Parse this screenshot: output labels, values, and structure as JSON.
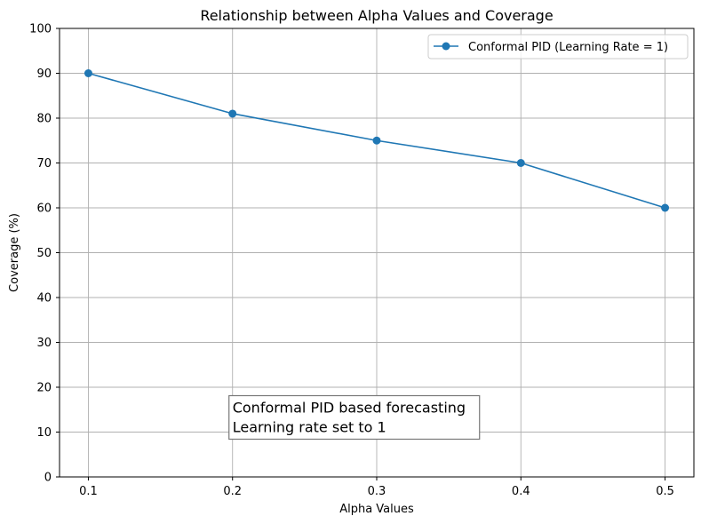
{
  "chart_data": {
    "type": "line",
    "title": "Relationship between Alpha Values and Coverage",
    "xlabel": "Alpha Values",
    "ylabel": "Coverage (%)",
    "x": [
      0.1,
      0.2,
      0.3,
      0.4,
      0.5
    ],
    "x_tick_labels": [
      "0.1",
      "0.2",
      "0.3",
      "0.4",
      "0.5"
    ],
    "y_ticks": [
      0,
      10,
      20,
      30,
      40,
      50,
      60,
      70,
      80,
      90,
      100
    ],
    "y_tick_labels": [
      "0",
      "10",
      "20",
      "30",
      "40",
      "50",
      "60",
      "70",
      "80",
      "90",
      "100"
    ],
    "ylim": [
      0,
      100
    ],
    "xlim": [
      0.08,
      0.52
    ],
    "grid": true,
    "legend_position": "upper-right",
    "series": [
      {
        "name": "Conformal PID (Learning Rate = 1)",
        "values": [
          90,
          81,
          75,
          70,
          60
        ],
        "color": "#1f77b4",
        "marker": "circle"
      }
    ],
    "annotation": {
      "lines": [
        "Conformal PID based forecasting",
        "Learning rate set to 1"
      ],
      "x": 0.2,
      "y": 10
    }
  }
}
